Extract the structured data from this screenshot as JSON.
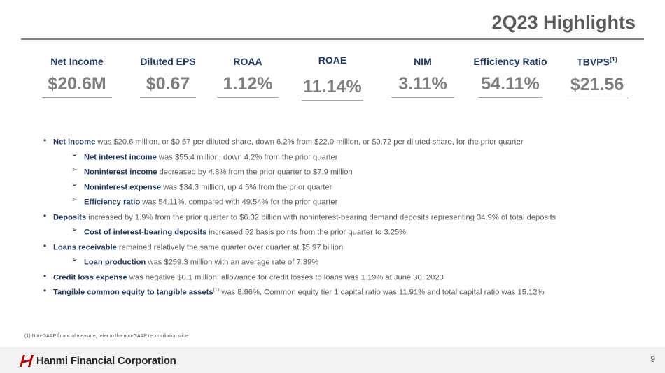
{
  "title": "2Q23 Highlights",
  "kpis": [
    {
      "label": "Net Income",
      "sup": "",
      "value": "$20.6M"
    },
    {
      "label": "Diluted EPS",
      "sup": "",
      "value": "$0.67"
    },
    {
      "label": "ROAA",
      "sup": "",
      "value": "1.12%"
    },
    {
      "label": "ROAE",
      "sup": "",
      "value": "11.14%"
    },
    {
      "label": "NIM",
      "sup": "",
      "value": "3.11%"
    },
    {
      "label": "Efficiency Ratio",
      "sup": "",
      "value": "54.11%"
    },
    {
      "label": "TBVPS",
      "sup": "(1)",
      "value": "$21.56"
    }
  ],
  "bullets": [
    {
      "level": 1,
      "bold": "Net income",
      "sup": "",
      "text": " was $20.6 million, or $0.67 per diluted share, down 6.2% from $22.0 million, or $0.72 per diluted share, for the prior quarter"
    },
    {
      "level": 2,
      "bold": "Net interest income",
      "sup": "",
      "text": " was $55.4 million, down 4.2% from the prior quarter"
    },
    {
      "level": 2,
      "bold": "Noninterest income",
      "sup": "",
      "text": " decreased by 4.8% from the prior quarter to $7.9 million"
    },
    {
      "level": 2,
      "bold": "Noninterest expense",
      "sup": "",
      "text": " was $34.3 million, up 4.5% from the prior quarter"
    },
    {
      "level": 2,
      "bold": "Efficiency ratio",
      "sup": "",
      "text": " was 54.11%, compared with 49.54% for the prior quarter"
    },
    {
      "level": 1,
      "bold": "Deposits",
      "sup": "",
      "text": " increased by 1.9% from the prior quarter to $6.32 billion with noninterest-bearing demand deposits representing 34.9% of total deposits"
    },
    {
      "level": 2,
      "bold": "Cost of interest-bearing deposits",
      "sup": "",
      "text": " increased 52 basis points from the prior quarter to 3.25%"
    },
    {
      "level": 1,
      "bold": "Loans receivable",
      "sup": "",
      "text": " remained relatively the same quarter over quarter at $5.97 billion"
    },
    {
      "level": 2,
      "bold": "Loan production",
      "sup": "",
      "text": " was $259.3 million with an average rate of 7.39%"
    },
    {
      "level": 1,
      "bold": "Credit loss expense",
      "sup": "",
      "text": " was negative $0.1 million; allowance for credit losses to loans was 1.19% at June 30, 2023"
    },
    {
      "level": 1,
      "bold": "Tangible common equity to tangible assets",
      "sup": "(1)",
      "text": " was 8.96%, Common equity tier 1 capital ratio was 11.91% and total capital ratio was 15.12%"
    }
  ],
  "footnote": "(1)   Non-GAAP financial measure; refer to the non-GAAP reconciliation slide",
  "footer": {
    "company": "Hanmi Financial Corporation",
    "page": "9"
  },
  "colors": {
    "navy": "#1f3864",
    "gray": "#7f7f7f",
    "brand_red": "#c00000"
  }
}
